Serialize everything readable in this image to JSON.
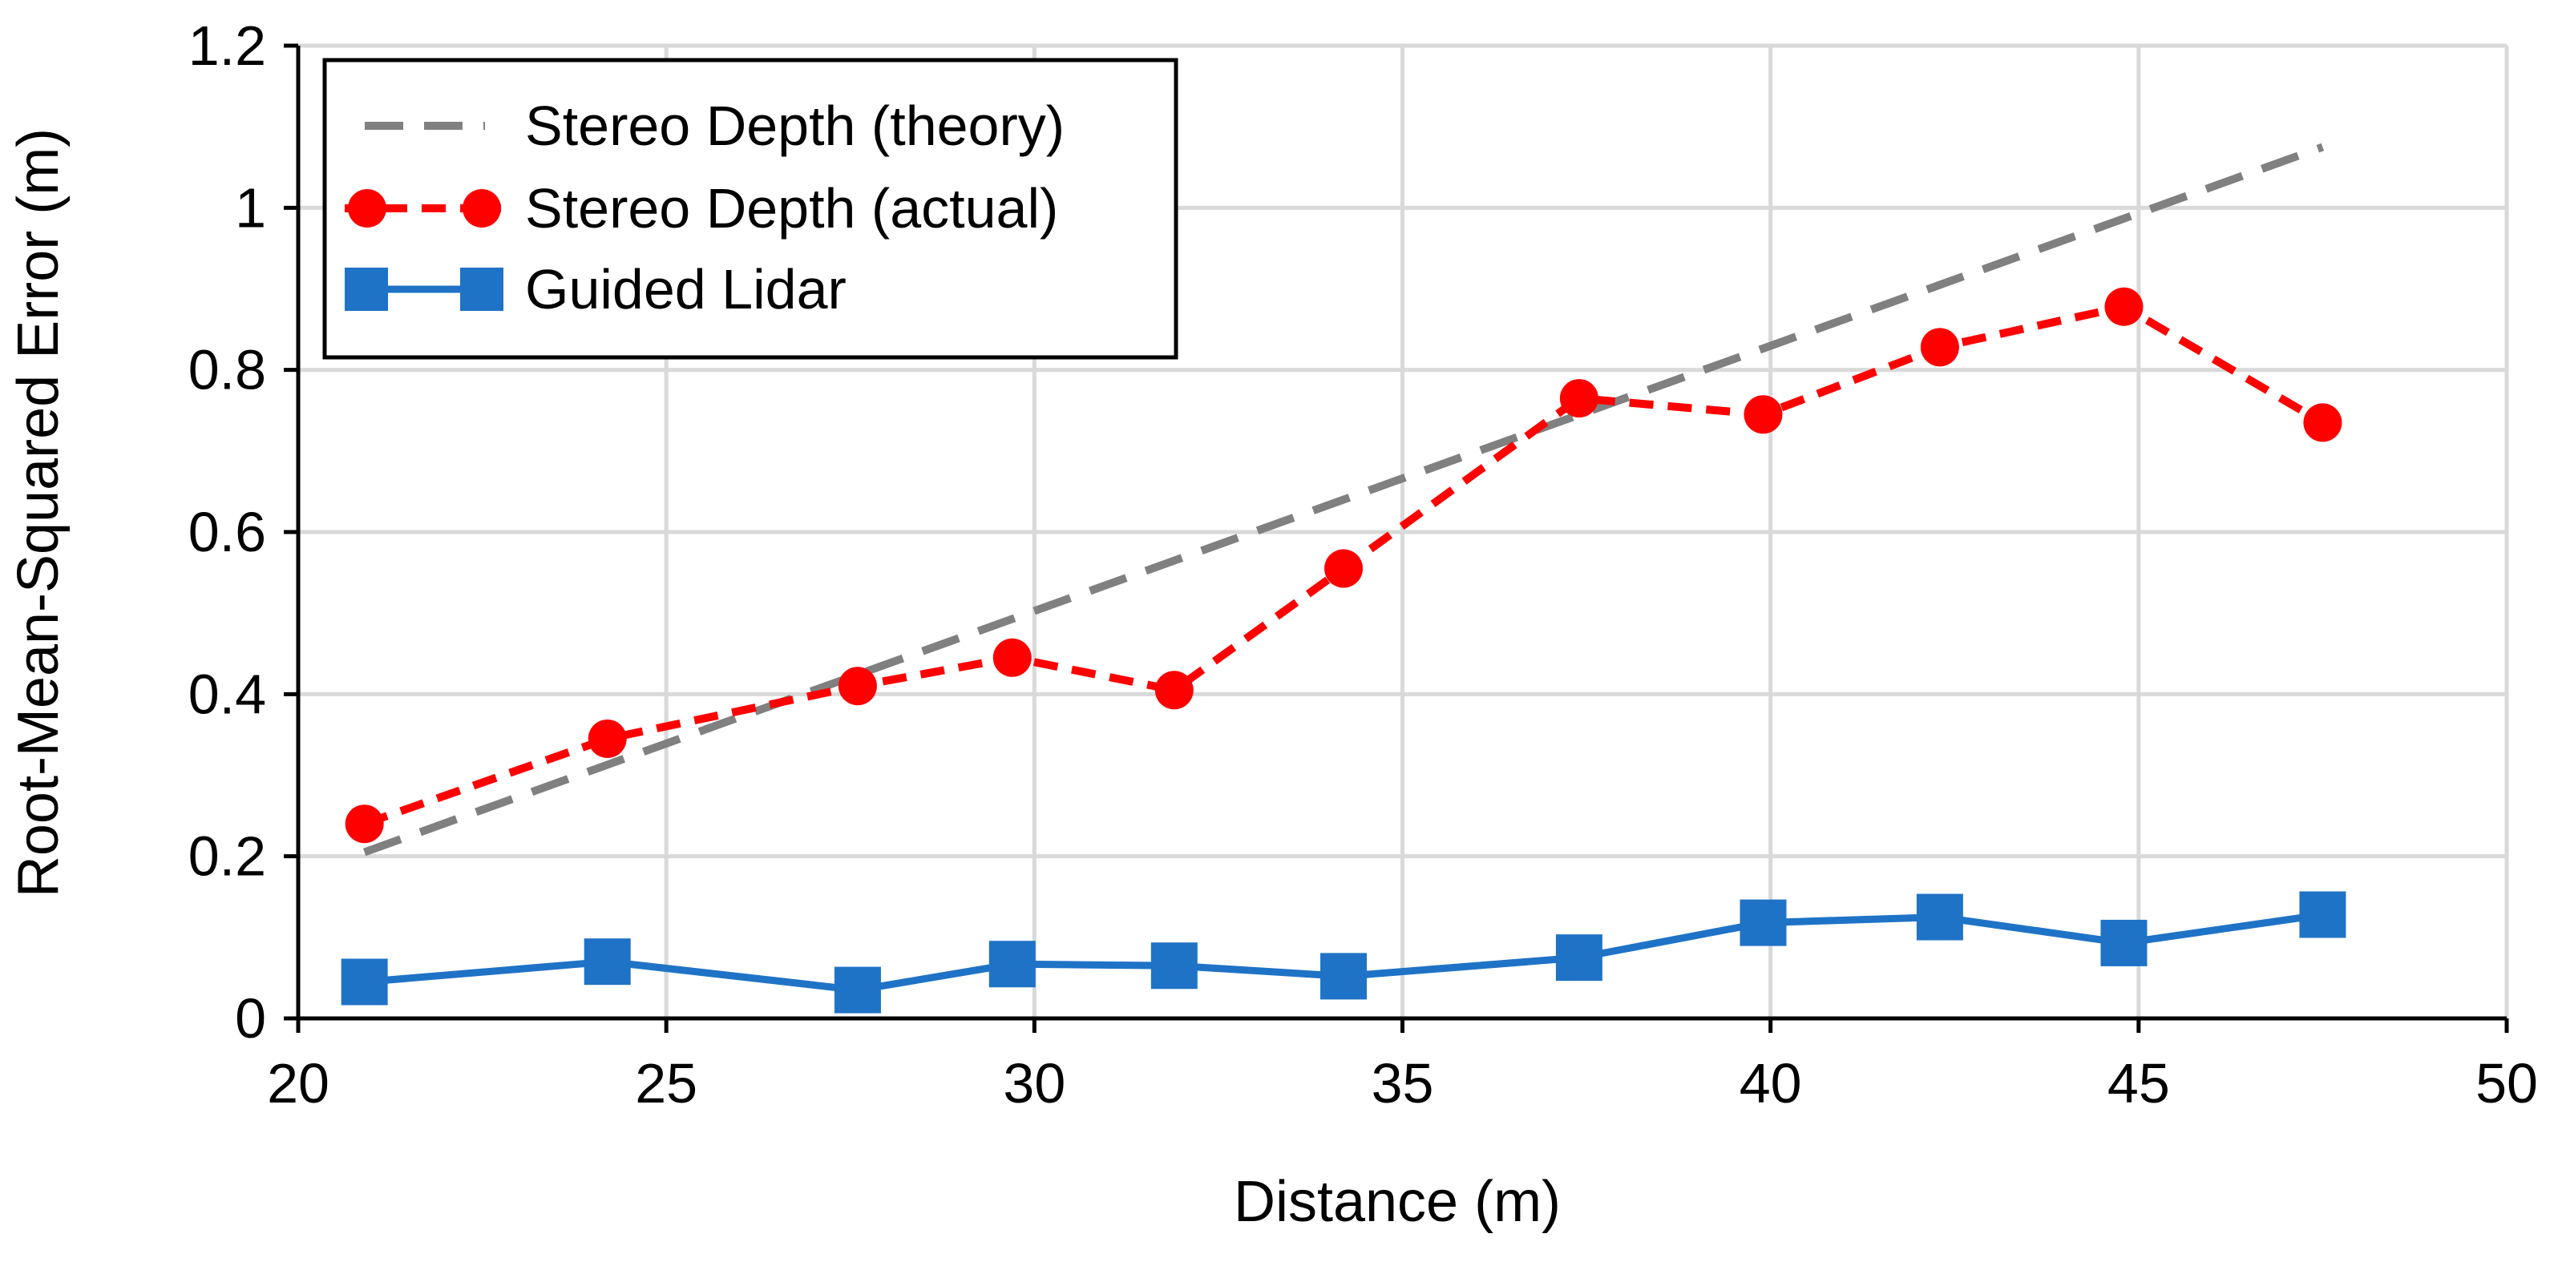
{
  "chart_data": {
    "type": "line",
    "title": "",
    "xlabel": "Distance (m)",
    "ylabel": "Root-Mean-Squared Error (m)",
    "xlim": [
      20,
      50
    ],
    "ylim": [
      0,
      1.2
    ],
    "xticks": [
      20,
      25,
      30,
      35,
      40,
      45,
      50
    ],
    "yticks": [
      0,
      0.2,
      0.4,
      0.6,
      0.8,
      1,
      1.2
    ],
    "xtick_labels": [
      "20",
      "25",
      "30",
      "35",
      "40",
      "45",
      "50"
    ],
    "ytick_labels": [
      "0",
      "0.2",
      "0.4",
      "0.6",
      "0.8",
      "1",
      "1.2"
    ],
    "grid": true,
    "legend_position": "top-left",
    "series": [
      {
        "name": "Stereo Depth (theory)",
        "color": "#808080",
        "line_style": "dashed",
        "marker": "none",
        "x": [
          20.9,
          47.5
        ],
        "y": [
          0.205,
          1.075
        ]
      },
      {
        "name": "Stereo Depth (actual)",
        "color": "#ff0000",
        "line_style": "dashed",
        "marker": "circle",
        "x": [
          20.9,
          24.2,
          27.6,
          29.7,
          31.9,
          34.2,
          37.4,
          39.9,
          42.3,
          44.8,
          47.5
        ],
        "y": [
          0.24,
          0.345,
          0.41,
          0.445,
          0.405,
          0.555,
          0.765,
          0.745,
          0.828,
          0.878,
          0.735
        ]
      },
      {
        "name": "Guided Lidar",
        "color": "#1f73c6",
        "line_style": "solid",
        "marker": "square",
        "x": [
          20.9,
          24.2,
          27.6,
          29.7,
          31.9,
          34.2,
          37.4,
          39.9,
          42.3,
          44.8,
          47.5
        ],
        "y": [
          0.045,
          0.07,
          0.035,
          0.067,
          0.065,
          0.052,
          0.075,
          0.118,
          0.125,
          0.093,
          0.128
        ]
      }
    ]
  }
}
